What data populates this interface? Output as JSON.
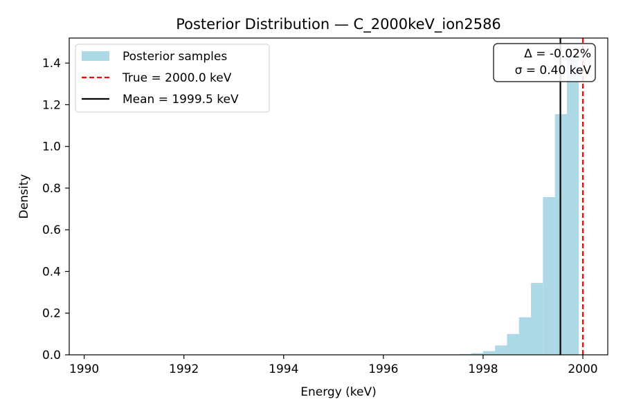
{
  "chart_data": {
    "type": "bar",
    "title": "Posterior Distribution — C_2000keV_ion2586",
    "xlabel": "Energy (keV)",
    "ylabel": "Density",
    "xlim": [
      1989.7,
      2000.5
    ],
    "ylim": [
      0,
      1.52
    ],
    "xticks": [
      1990,
      1992,
      1994,
      1996,
      1998,
      2000
    ],
    "xtick_labels": [
      "1990",
      "1992",
      "1994",
      "1996",
      "1998",
      "2000"
    ],
    "yticks": [
      0,
      0.2,
      0.4,
      0.6,
      0.8,
      1.0,
      1.2,
      1.4
    ],
    "ytick_labels": [
      "0.0",
      "0.2",
      "0.4",
      "0.6",
      "0.8",
      "1.0",
      "1.2",
      "1.4"
    ],
    "grid": false,
    "legend_position": "top-left",
    "series": [
      {
        "name": "Posterior samples",
        "kind": "histogram",
        "color": "#add8e6",
        "bins": [
          {
            "x0": 1997.52,
            "x1": 1997.76,
            "value": 0.004
          },
          {
            "x0": 1997.76,
            "x1": 1998.0,
            "value": 0.008
          },
          {
            "x0": 1998.0,
            "x1": 1998.24,
            "value": 0.018
          },
          {
            "x0": 1998.24,
            "x1": 1998.48,
            "value": 0.045
          },
          {
            "x0": 1998.48,
            "x1": 1998.72,
            "value": 0.1
          },
          {
            "x0": 1998.72,
            "x1": 1998.96,
            "value": 0.18
          },
          {
            "x0": 1998.96,
            "x1": 1999.2,
            "value": 0.345
          },
          {
            "x0": 1999.2,
            "x1": 1999.44,
            "value": 0.757
          },
          {
            "x0": 1999.44,
            "x1": 1999.68,
            "value": 1.155
          },
          {
            "x0": 1999.68,
            "x1": 1999.92,
            "value": 1.44
          }
        ]
      },
      {
        "name": "True = 2000.0 keV",
        "kind": "vline",
        "x": 2000.0,
        "color": "#ff0000",
        "style": "dashed"
      },
      {
        "name": "Mean = 1999.5 keV",
        "kind": "vline",
        "x": 1999.55,
        "color": "#000000",
        "style": "solid"
      }
    ],
    "annotation": {
      "lines": [
        "Δ = -0.02%",
        "σ = 0.40 keV"
      ],
      "position": "top-right"
    }
  }
}
